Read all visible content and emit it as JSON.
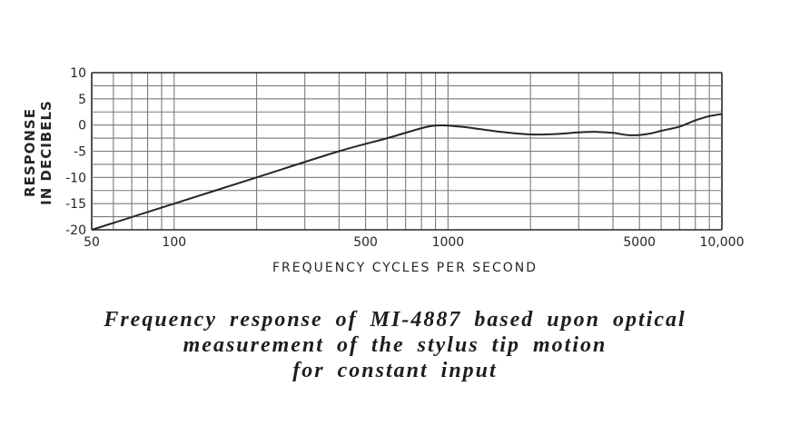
{
  "chart_data": {
    "type": "line",
    "xscale": "log",
    "xlim": [
      50,
      10000
    ],
    "ylim": [
      -20,
      10
    ],
    "grid": true,
    "xlabel": "FREQUENCY CYCLES PER SECOND",
    "ylabel": [
      "RESPONSE",
      "IN DECIBELS"
    ],
    "x_tick_labels": [
      {
        "value": 50,
        "label": "50"
      },
      {
        "value": 100,
        "label": "100"
      },
      {
        "value": 500,
        "label": "500"
      },
      {
        "value": 1000,
        "label": "1000"
      },
      {
        "value": 5000,
        "label": "5000"
      },
      {
        "value": 10000,
        "label": "10,000"
      }
    ],
    "y_tick_labels": [
      {
        "value": 10,
        "label": "10"
      },
      {
        "value": 5,
        "label": "5"
      },
      {
        "value": 0,
        "label": "0"
      },
      {
        "value": -5,
        "label": "-5"
      },
      {
        "value": -10,
        "label": "-10"
      },
      {
        "value": -15,
        "label": "-15"
      },
      {
        "value": -20,
        "label": "-20"
      }
    ],
    "x_grid": [
      50,
      60,
      70,
      80,
      90,
      100,
      200,
      300,
      400,
      500,
      600,
      700,
      800,
      900,
      1000,
      2000,
      3000,
      4000,
      5000,
      6000,
      7000,
      8000,
      9000,
      10000
    ],
    "y_grid": [
      10,
      7.5,
      5,
      2.5,
      0,
      -2.5,
      -5,
      -7.5,
      -10,
      -12.5,
      -15,
      -17.5,
      -20
    ],
    "series": [
      {
        "x": [
          50,
          100,
          200,
          400,
          600,
          800,
          900,
          1000,
          1200,
          1500,
          2000,
          2500,
          3000,
          3500,
          4000,
          4500,
          5000,
          5500,
          6000,
          7000,
          8000,
          9000,
          10000
        ],
        "y": [
          -20,
          -15,
          -10,
          -5,
          -2.5,
          -0.6,
          -0.1,
          -0.1,
          -0.5,
          -1.2,
          -1.8,
          -1.7,
          -1.4,
          -1.3,
          -1.5,
          -1.9,
          -1.9,
          -1.6,
          -1.1,
          -0.3,
          0.9,
          1.7,
          2.1
        ]
      }
    ]
  },
  "caption": [
    "Frequency response of MI-4887 based upon optical",
    "measurement of the stylus tip motion",
    "for constant input"
  ],
  "colors": {
    "ink": "#262626",
    "grid": "#7a7a7a",
    "background": "#ffffff"
  }
}
